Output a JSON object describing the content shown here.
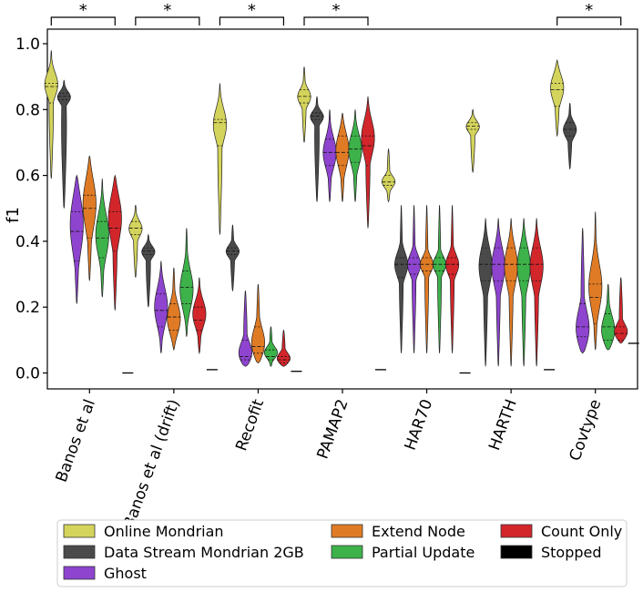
{
  "chart_data": {
    "type": "violin",
    "ylabel": "f1",
    "yticks": [
      0.0,
      0.2,
      0.4,
      0.6,
      0.8,
      1.0
    ],
    "ytick_labels": [
      "0.0",
      "0.2",
      "0.4",
      "0.6",
      "0.8",
      "1.0"
    ],
    "ylim": [
      -0.05,
      1.05
    ],
    "grid": false,
    "legend_position": "bottom",
    "categories": [
      "Banos et al",
      "Banos et al (drift)",
      "Recofit",
      "PAMAP2",
      "HAR70",
      "HARTH",
      "Covtype"
    ],
    "significance_label": "*",
    "significant_categories": [
      "Banos et al",
      "Banos et al (drift)",
      "Recofit",
      "PAMAP2",
      "Covtype"
    ],
    "series": [
      {
        "name": "Online Mondrian",
        "color": "#d4d45c",
        "key": "om"
      },
      {
        "name": "Data Stream Mondrian 2GB",
        "color": "#4a4a4a",
        "key": "ds"
      },
      {
        "name": "Ghost",
        "color": "#8e44cf",
        "key": "gh"
      },
      {
        "name": "Extend Node",
        "color": "#e07b25",
        "key": "en"
      },
      {
        "name": "Partial Update",
        "color": "#3db24a",
        "key": "pu"
      },
      {
        "name": "Count Only",
        "color": "#d2262b",
        "key": "co"
      },
      {
        "name": "Stopped",
        "color": "#000000",
        "key": "st"
      }
    ],
    "distributions": [
      {
        "category": "Banos et al",
        "values": {
          "om": {
            "min": 0.59,
            "max": 0.98,
            "q1": 0.82,
            "median": 0.87,
            "q3": 0.88,
            "mode": 0.88
          },
          "ds": {
            "min": 0.5,
            "max": 0.89,
            "q1": 0.83,
            "median": 0.84,
            "q3": 0.85,
            "mode": 0.84
          },
          "gh": {
            "min": 0.21,
            "max": 0.6,
            "q1": 0.34,
            "median": 0.43,
            "q3": 0.49,
            "mode": 0.46
          },
          "en": {
            "min": 0.28,
            "max": 0.66,
            "q1": 0.41,
            "median": 0.5,
            "q3": 0.54,
            "mode": 0.52
          },
          "pu": {
            "min": 0.23,
            "max": 0.59,
            "q1": 0.35,
            "median": 0.41,
            "q3": 0.46,
            "mode": 0.42
          },
          "co": {
            "min": 0.19,
            "max": 0.6,
            "q1": 0.37,
            "median": 0.44,
            "q3": 0.49,
            "mode": 0.48
          },
          "st": {
            "value": 0.0
          }
        }
      },
      {
        "category": "Banos et al (drift)",
        "values": {
          "om": {
            "min": 0.29,
            "max": 0.51,
            "q1": 0.42,
            "median": 0.44,
            "q3": 0.46,
            "mode": 0.44
          },
          "ds": {
            "min": 0.2,
            "max": 0.42,
            "q1": 0.36,
            "median": 0.37,
            "q3": 0.38,
            "mode": 0.37
          },
          "gh": {
            "min": 0.06,
            "max": 0.34,
            "q1": 0.14,
            "median": 0.19,
            "q3": 0.24,
            "mode": 0.2
          },
          "en": {
            "min": 0.07,
            "max": 0.32,
            "q1": 0.13,
            "median": 0.17,
            "q3": 0.21,
            "mode": 0.16
          },
          "pu": {
            "min": 0.11,
            "max": 0.44,
            "q1": 0.21,
            "median": 0.26,
            "q3": 0.31,
            "mode": 0.25
          },
          "co": {
            "min": 0.06,
            "max": 0.29,
            "q1": 0.13,
            "median": 0.16,
            "q3": 0.2,
            "mode": 0.18
          },
          "st": {
            "value": 0.01
          }
        }
      },
      {
        "category": "Recofit",
        "values": {
          "om": {
            "min": 0.42,
            "max": 0.88,
            "q1": 0.69,
            "median": 0.76,
            "q3": 0.77,
            "mode": 0.76
          },
          "ds": {
            "min": 0.25,
            "max": 0.45,
            "q1": 0.36,
            "median": 0.37,
            "q3": 0.38,
            "mode": 0.37
          },
          "gh": {
            "min": 0.02,
            "max": 0.25,
            "q1": 0.04,
            "median": 0.05,
            "q3": 0.1,
            "mode": 0.05
          },
          "en": {
            "min": 0.03,
            "max": 0.27,
            "q1": 0.06,
            "median": 0.08,
            "q3": 0.14,
            "mode": 0.08
          },
          "pu": {
            "min": 0.02,
            "max": 0.14,
            "q1": 0.04,
            "median": 0.05,
            "q3": 0.07,
            "mode": 0.06
          },
          "co": {
            "min": 0.02,
            "max": 0.13,
            "q1": 0.03,
            "median": 0.04,
            "q3": 0.05,
            "mode": 0.04
          },
          "st": {
            "value": 0.005
          }
        }
      },
      {
        "category": "PAMAP2",
        "values": {
          "om": {
            "min": 0.7,
            "max": 0.93,
            "q1": 0.82,
            "median": 0.84,
            "q3": 0.86,
            "mode": 0.84
          },
          "ds": {
            "min": 0.52,
            "max": 0.84,
            "q1": 0.77,
            "median": 0.78,
            "q3": 0.79,
            "mode": 0.78
          },
          "gh": {
            "min": 0.52,
            "max": 0.8,
            "q1": 0.63,
            "median": 0.67,
            "q3": 0.71,
            "mode": 0.67
          },
          "en": {
            "min": 0.52,
            "max": 0.79,
            "q1": 0.63,
            "median": 0.67,
            "q3": 0.72,
            "mode": 0.68
          },
          "pu": {
            "min": 0.52,
            "max": 0.8,
            "q1": 0.64,
            "median": 0.68,
            "q3": 0.72,
            "mode": 0.68
          },
          "co": {
            "min": 0.44,
            "max": 0.84,
            "q1": 0.63,
            "median": 0.69,
            "q3": 0.72,
            "mode": 0.72
          },
          "st": {
            "value": 0.01
          }
        }
      },
      {
        "category": "HAR70",
        "values": {
          "om": {
            "min": 0.52,
            "max": 0.68,
            "q1": 0.57,
            "median": 0.58,
            "q3": 0.6,
            "mode": 0.58
          },
          "ds": {
            "min": 0.06,
            "max": 0.51,
            "q1": 0.29,
            "median": 0.33,
            "q3": 0.35,
            "mode": 0.33
          },
          "gh": {
            "min": 0.06,
            "max": 0.51,
            "q1": 0.3,
            "median": 0.33,
            "q3": 0.35,
            "mode": 0.33
          },
          "en": {
            "min": 0.06,
            "max": 0.51,
            "q1": 0.31,
            "median": 0.33,
            "q3": 0.35,
            "mode": 0.33
          },
          "pu": {
            "min": 0.06,
            "max": 0.51,
            "q1": 0.31,
            "median": 0.33,
            "q3": 0.35,
            "mode": 0.33
          },
          "co": {
            "min": 0.06,
            "max": 0.51,
            "q1": 0.3,
            "median": 0.33,
            "q3": 0.35,
            "mode": 0.33
          },
          "st": {
            "value": 0.0
          }
        }
      },
      {
        "category": "HARTH",
        "values": {
          "om": {
            "min": 0.61,
            "max": 0.8,
            "q1": 0.74,
            "median": 0.75,
            "q3": 0.76,
            "mode": 0.75
          },
          "ds": {
            "min": 0.02,
            "max": 0.47,
            "q1": 0.28,
            "median": 0.33,
            "q3": 0.38,
            "mode": 0.33
          },
          "gh": {
            "min": 0.02,
            "max": 0.47,
            "q1": 0.28,
            "median": 0.33,
            "q3": 0.38,
            "mode": 0.33
          },
          "en": {
            "min": 0.02,
            "max": 0.47,
            "q1": 0.28,
            "median": 0.33,
            "q3": 0.38,
            "mode": 0.33
          },
          "pu": {
            "min": 0.02,
            "max": 0.47,
            "q1": 0.28,
            "median": 0.33,
            "q3": 0.38,
            "mode": 0.33
          },
          "co": {
            "min": 0.02,
            "max": 0.47,
            "q1": 0.28,
            "median": 0.33,
            "q3": 0.38,
            "mode": 0.33
          },
          "st": {
            "value": 0.01
          }
        }
      },
      {
        "category": "Covtype",
        "values": {
          "om": {
            "min": 0.72,
            "max": 0.95,
            "q1": 0.81,
            "median": 0.86,
            "q3": 0.88,
            "mode": 0.87
          },
          "ds": {
            "min": 0.62,
            "max": 0.82,
            "q1": 0.72,
            "median": 0.74,
            "q3": 0.76,
            "mode": 0.74
          },
          "gh": {
            "min": 0.06,
            "max": 0.44,
            "q1": 0.11,
            "median": 0.14,
            "q3": 0.21,
            "mode": 0.12
          },
          "en": {
            "min": 0.07,
            "max": 0.49,
            "q1": 0.15,
            "median": 0.23,
            "q3": 0.27,
            "mode": 0.26
          },
          "pu": {
            "min": 0.07,
            "max": 0.27,
            "q1": 0.1,
            "median": 0.14,
            "q3": 0.18,
            "mode": 0.12
          },
          "co": {
            "min": 0.09,
            "max": 0.29,
            "q1": 0.1,
            "median": 0.12,
            "q3": 0.14,
            "mode": 0.12
          },
          "st": {
            "value": 0.09
          }
        }
      }
    ]
  }
}
